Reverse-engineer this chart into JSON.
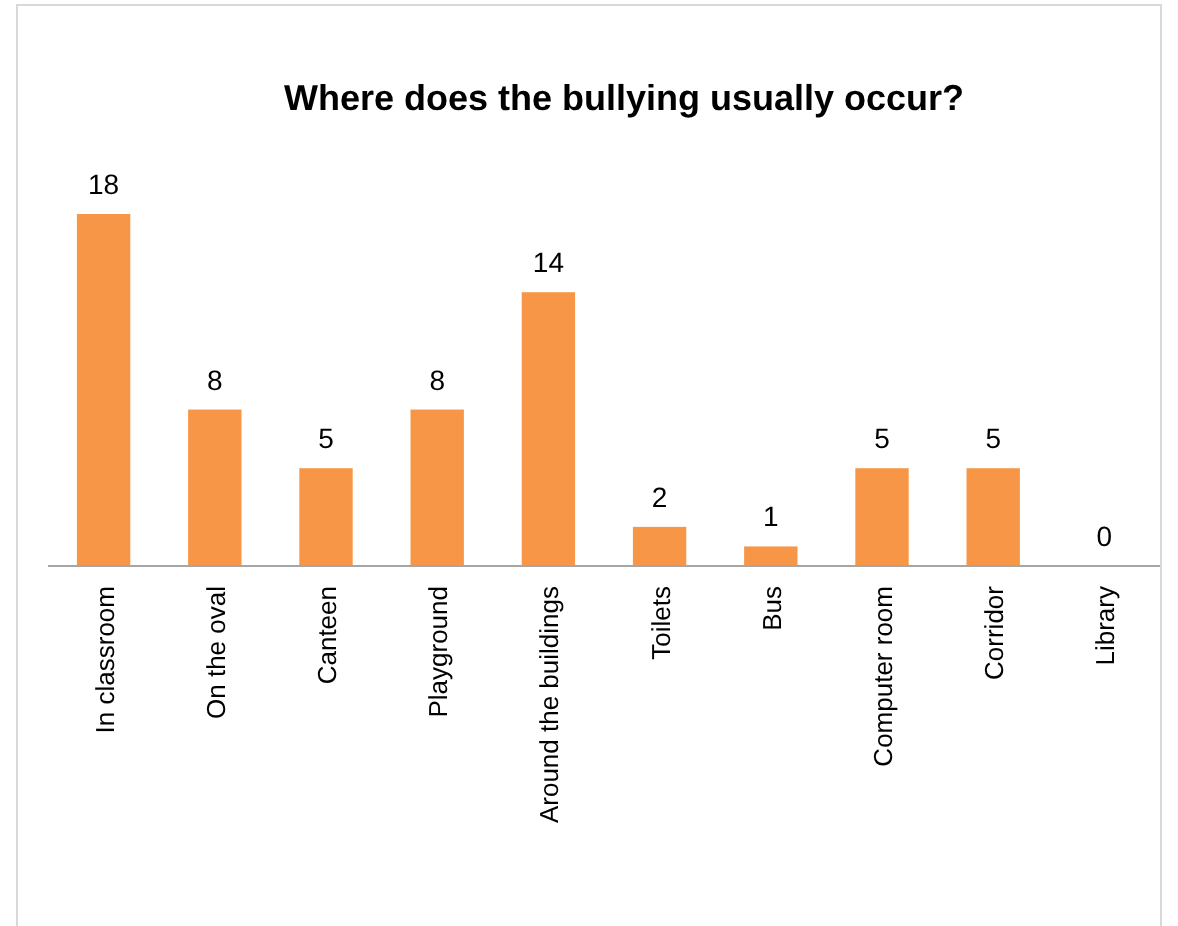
{
  "chart_data": {
    "type": "bar",
    "title": "Where does the bullying usually occur?",
    "categories": [
      "In classroom",
      "On the oval",
      "Canteen",
      "Playground",
      "Around the buildings",
      "Toilets",
      "Bus",
      "Computer room",
      "Corridor",
      "Library"
    ],
    "values": [
      18,
      8,
      5,
      8,
      14,
      2,
      1,
      5,
      5,
      0
    ],
    "color": "#f79646",
    "data_labels": true
  }
}
